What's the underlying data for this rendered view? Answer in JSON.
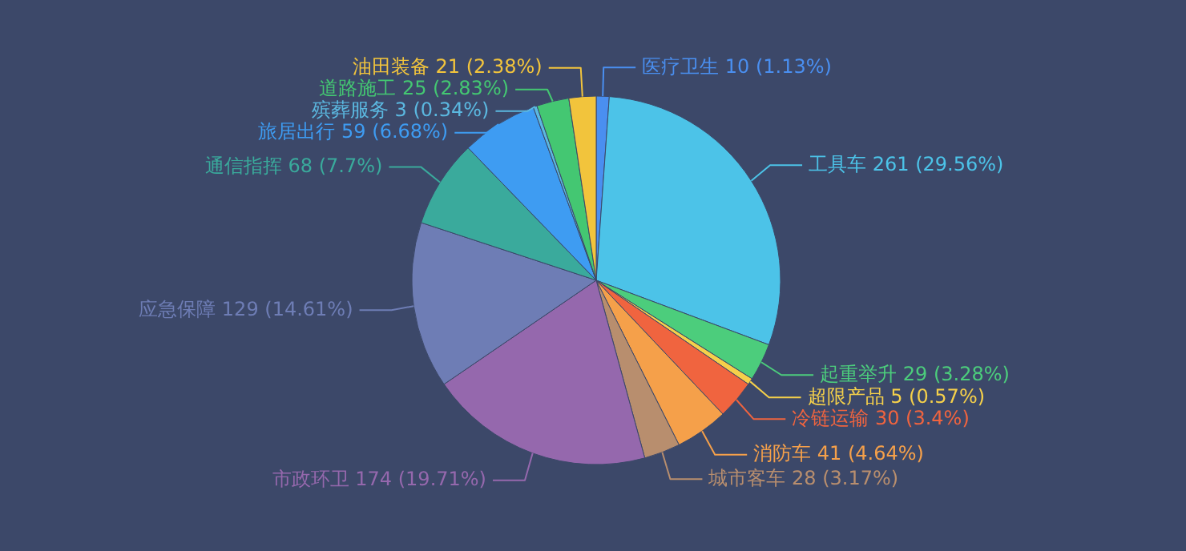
{
  "chart_data": {
    "type": "pie",
    "categories": [
      "医疗卫生",
      "工具车",
      "起重举升",
      "超限产品",
      "冷链运输",
      "消防车",
      "城市客车",
      "市政环卫",
      "应急保障",
      "通信指挥",
      "旅居出行",
      "殡葬服务",
      "道路施工",
      "油田装备"
    ],
    "values": [
      10,
      261,
      29,
      5,
      30,
      41,
      28,
      174,
      129,
      68,
      59,
      3,
      25,
      21
    ],
    "value_labels": [
      "10 (1.13%)",
      "261 (29.56%)",
      "29 (3.28%)",
      "5 (0.57%)",
      "30 (3.4%)",
      "41 (4.64%)",
      "28 (3.17%)",
      "174 (19.71%)",
      "129 (14.61%)",
      "68 (7.7%)",
      "59 (6.68%)",
      "3 (0.34%)",
      "25 (2.83%)",
      "21 (2.38%)"
    ],
    "colors": [
      "#4a8ff0",
      "#4cc3e8",
      "#4ccd7c",
      "#f5d04a",
      "#f0643f",
      "#f5a04a",
      "#b88e6e",
      "#9568ad",
      "#6e7db5",
      "#3aaa9c",
      "#3e9cf2",
      "#5bb8e0",
      "#44c772",
      "#f2c43c"
    ],
    "legend": false
  }
}
